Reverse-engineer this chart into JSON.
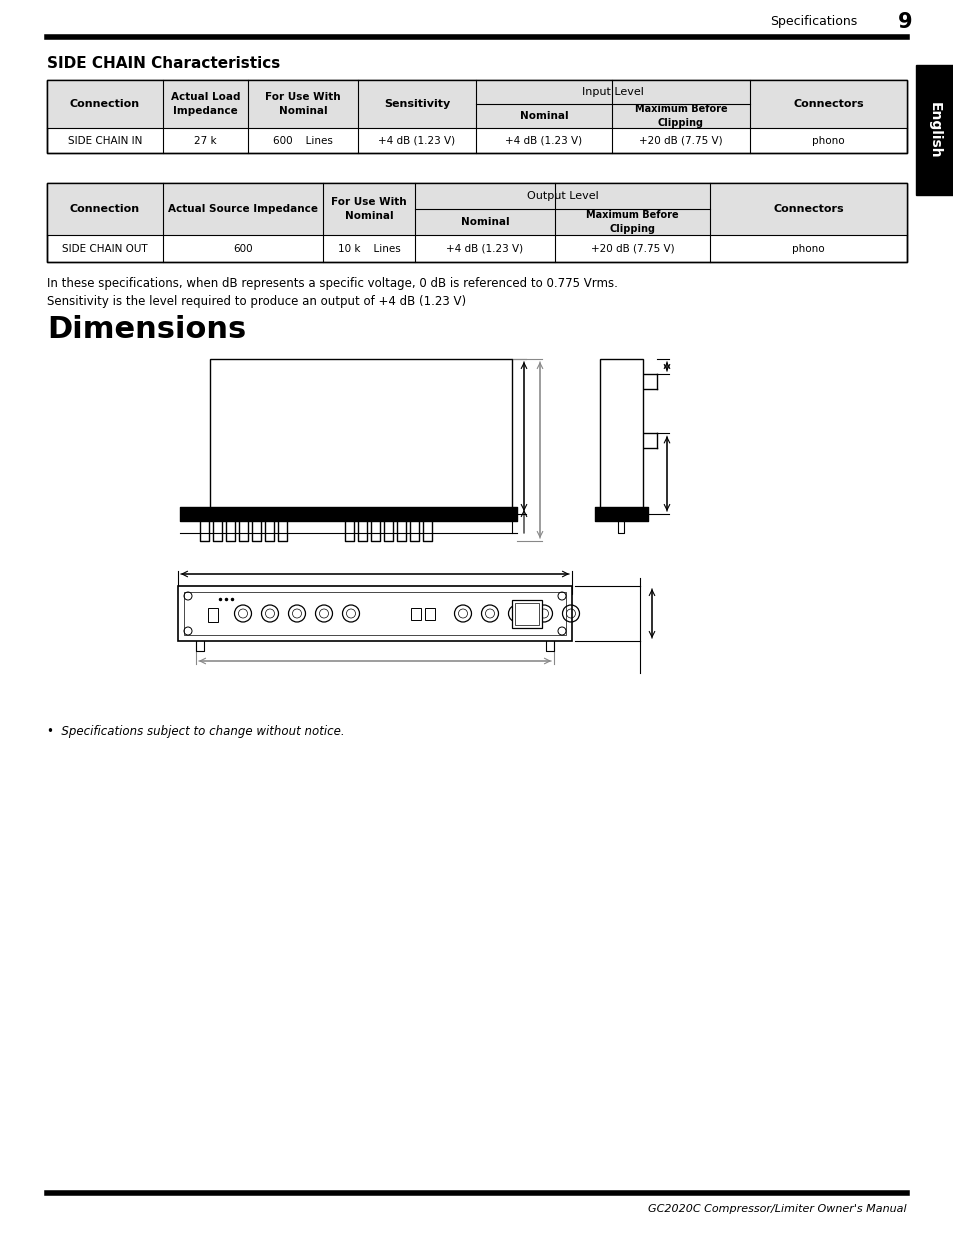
{
  "page_num": "9",
  "page_header": "Specifications",
  "section1_title": "SIDE CHAIN Characteristics",
  "table1_data": [
    [
      "SIDE CHAIN IN",
      "27 k",
      "600    Lines",
      "+4 dB (1.23 V)",
      "+4 dB (1.23 V)",
      "+20 dB (7.75 V)",
      "phono"
    ]
  ],
  "table2_data": [
    [
      "SIDE CHAIN OUT",
      "600",
      "10 k    Lines",
      "+4 dB (1.23 V)",
      "+20 dB (7.75 V)",
      "phono"
    ]
  ],
  "note1": "In these specifications, when dB represents a specific voltage, 0 dB is referenced to 0.775 Vrms.",
  "note2": "Sensitivity is the level required to produce an output of +4 dB (1.23 V)",
  "dimensions_title": "Dimensions",
  "footer_text": "GC2020C Compressor/Limiter Owner's Manual",
  "bullet_note": "Specifications subject to change without notice.",
  "bg_color": "#ffffff"
}
